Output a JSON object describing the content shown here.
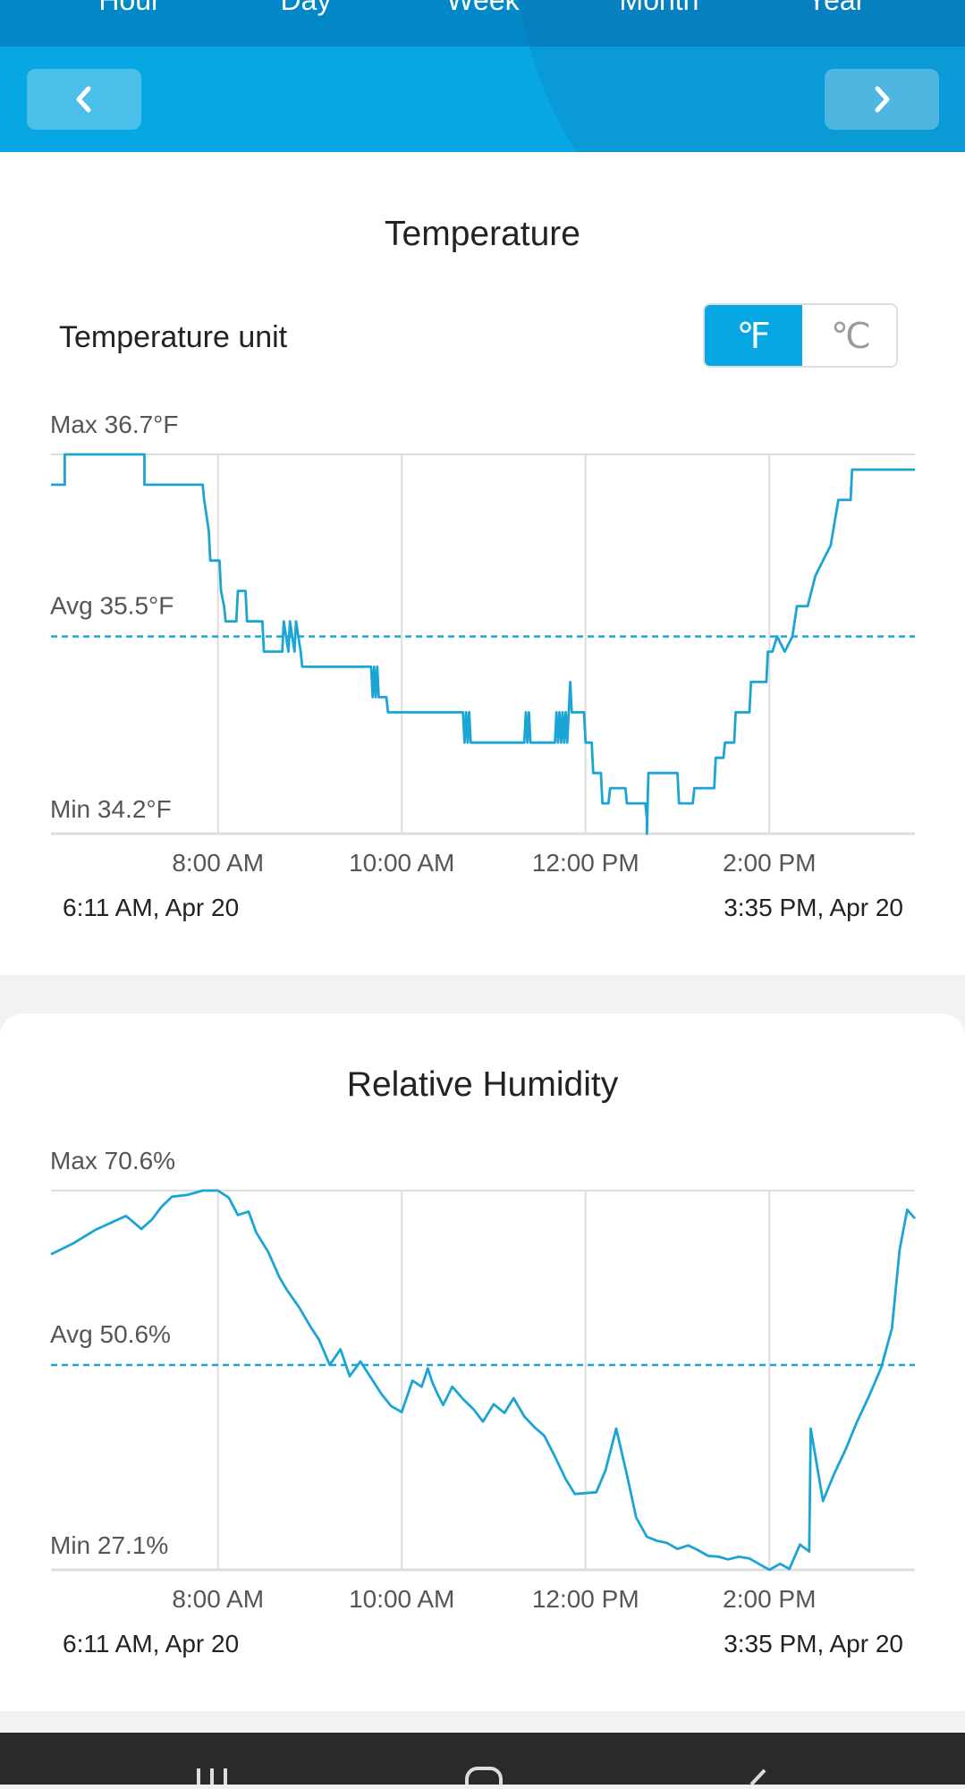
{
  "header": {
    "tabs": [
      "Hour",
      "Day",
      "Week",
      "Month",
      "Year"
    ],
    "prev_icon": "chevron-left-icon",
    "next_icon": "chevron-right-icon"
  },
  "temperature": {
    "title": "Temperature",
    "unit_label": "Temperature unit",
    "unit_options": [
      "℉",
      "℃"
    ],
    "active_unit": "℉",
    "range_start": "6:11 AM,  Apr 20",
    "range_end": "3:35 PM,  Apr 20"
  },
  "humidity": {
    "title": "Relative Humidity",
    "range_start": "6:11 AM,  Apr 20",
    "range_end": "3:35 PM,  Apr 20"
  },
  "colors": {
    "accent": "#06a7e2",
    "line": "#1aa5d4",
    "avg_line": "#1aa5d4",
    "grid": "#dddddd"
  },
  "chart_data": [
    {
      "type": "line",
      "title": "",
      "max_label": "Max 36.7°F",
      "avg_label": "Avg 35.5°F",
      "min_label": "Min 34.2°F",
      "x_tick_labels": [
        "8:00 AM",
        "10:00 AM",
        "12:00 PM",
        "2:00 PM"
      ],
      "x_ticks_min": [
        480,
        600,
        720,
        840
      ],
      "xlim_min": [
        371,
        935
      ],
      "ylim": [
        34.2,
        36.7
      ],
      "avg": 35.5,
      "grid": true,
      "step": true,
      "series": [
        {
          "x_min": [
            371,
            380,
            380,
            432,
            432,
            470,
            471,
            474,
            475,
            481,
            482,
            484,
            485,
            492,
            493,
            498,
            499,
            509,
            510,
            522,
            523,
            526,
            527,
            530,
            531,
            534,
            535,
            580,
            581,
            582,
            583,
            584,
            585,
            590,
            591,
            640,
            641,
            642,
            643,
            644,
            645,
            680,
            681,
            682,
            683,
            684,
            685,
            700,
            701,
            702,
            703,
            704,
            705,
            706,
            707,
            708,
            709,
            710,
            711,
            719,
            720,
            724,
            725,
            730,
            731,
            735,
            736,
            746,
            747,
            759,
            760,
            760,
            761,
            780,
            781,
            790,
            791,
            804,
            805,
            810,
            811,
            817,
            818,
            827,
            828,
            838,
            839,
            842,
            845,
            850,
            855,
            858,
            865,
            870,
            875,
            880,
            885,
            893,
            894,
            899,
            900,
            906,
            907,
            913,
            914,
            920,
            921,
            930,
            931,
            935
          ],
          "y": [
            36.5,
            36.5,
            36.7,
            36.7,
            36.5,
            36.5,
            36.4,
            36.2,
            36.0,
            36.0,
            35.8,
            35.7,
            35.6,
            35.6,
            35.8,
            35.8,
            35.6,
            35.6,
            35.4,
            35.4,
            35.6,
            35.4,
            35.6,
            35.4,
            35.6,
            35.4,
            35.3,
            35.3,
            35.1,
            35.3,
            35.1,
            35.3,
            35.1,
            35.1,
            35.0,
            35.0,
            34.8,
            35.0,
            34.8,
            35.0,
            34.8,
            34.8,
            35.0,
            34.8,
            35.0,
            34.8,
            34.8,
            34.8,
            35.0,
            34.8,
            35.0,
            34.8,
            35.0,
            34.8,
            35.0,
            34.8,
            35.0,
            35.2,
            35.0,
            35.0,
            34.8,
            34.8,
            34.6,
            34.6,
            34.4,
            34.4,
            34.5,
            34.5,
            34.4,
            34.4,
            34.3,
            34.2,
            34.6,
            34.6,
            34.4,
            34.4,
            34.5,
            34.5,
            34.7,
            34.7,
            34.8,
            34.8,
            35.0,
            35.0,
            35.2,
            35.2,
            35.4,
            35.4,
            35.5,
            35.4,
            35.5,
            35.7,
            35.7,
            35.9,
            36.0,
            36.1,
            36.4,
            36.4,
            36.6,
            36.6,
            36.6,
            36.6,
            36.6,
            36.6,
            36.6,
            36.6,
            36.6,
            36.6,
            36.6,
            36.6
          ]
        }
      ]
    },
    {
      "type": "line",
      "title": "",
      "max_label": "Max 70.6%",
      "avg_label": "Avg 50.6%",
      "min_label": "Min 27.1%",
      "x_tick_labels": [
        "8:00 AM",
        "10:00 AM",
        "12:00 PM",
        "2:00 PM"
      ],
      "x_ticks_min": [
        480,
        600,
        720,
        840
      ],
      "xlim_min": [
        371,
        935
      ],
      "ylim": [
        27.1,
        70.6
      ],
      "avg": 50.6,
      "grid": true,
      "step": false,
      "series": [
        {
          "x_min": [
            371,
            385,
            400,
            420,
            430,
            437,
            443,
            450,
            460,
            470,
            480,
            487,
            493,
            500,
            505,
            513,
            520,
            525,
            533,
            540,
            546,
            553,
            560,
            566,
            573,
            580,
            587,
            593,
            600,
            607,
            613,
            617,
            620,
            623,
            627,
            633,
            640,
            647,
            653,
            660,
            667,
            673,
            680,
            687,
            693,
            700,
            707,
            713,
            720,
            727,
            733,
            740,
            747,
            753,
            760,
            767,
            773,
            780,
            787,
            793,
            800,
            807,
            813,
            820,
            827,
            833,
            840,
            847,
            853,
            860,
            866,
            867,
            875,
            882,
            890,
            897,
            905,
            913,
            920,
            925,
            930,
            935
          ],
          "y": [
            63.3,
            64.5,
            66.1,
            67.7,
            66.2,
            67.3,
            68.7,
            69.9,
            70.1,
            70.6,
            70.6,
            69.8,
            67.8,
            68.2,
            65.8,
            63.5,
            60.7,
            59.2,
            57.2,
            55.1,
            53.5,
            50.6,
            52.4,
            49.3,
            51.0,
            49.1,
            47.2,
            45.9,
            45.2,
            48.8,
            48.1,
            50.2,
            48.6,
            47.4,
            46.0,
            48.1,
            46.7,
            45.5,
            44.1,
            46.1,
            45.1,
            46.8,
            44.7,
            43.4,
            42.5,
            40.1,
            37.5,
            35.8,
            35.9,
            36.0,
            38.5,
            43.3,
            38.0,
            33.1,
            30.9,
            30.4,
            30.2,
            29.5,
            29.9,
            29.4,
            28.7,
            28.6,
            28.3,
            28.6,
            28.4,
            27.8,
            27.1,
            27.8,
            27.2,
            30.0,
            29.2,
            43.3,
            35.0,
            38.0,
            41.0,
            44.0,
            47.0,
            50.3,
            54.8,
            63.8,
            68.4,
            67.4
          ]
        }
      ]
    }
  ]
}
